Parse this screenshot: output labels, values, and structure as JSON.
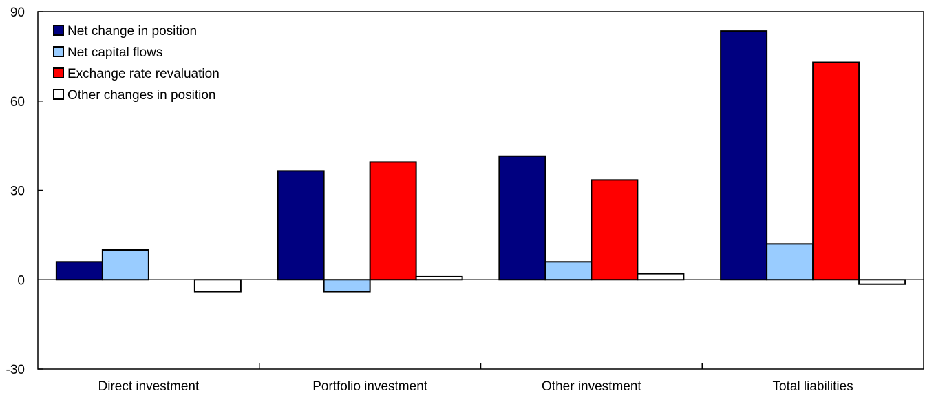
{
  "chart_data": {
    "type": "bar",
    "categories": [
      "Direct investment",
      "Portfolio investment",
      "Other investment",
      "Total liabilities"
    ],
    "series": [
      {
        "name": "Net change in position",
        "values": [
          6,
          36.5,
          41.5,
          83.5
        ],
        "color": "#000080"
      },
      {
        "name": "Net capital flows",
        "values": [
          10,
          -4,
          6,
          12
        ],
        "color": "#99ccff"
      },
      {
        "name": "Exchange rate revaluation",
        "values": [
          0,
          39.5,
          33.5,
          73
        ],
        "color": "#ff0000"
      },
      {
        "name": "Other changes in position",
        "values": [
          -4,
          1,
          2,
          -1.5
        ],
        "color": "#ffffff"
      }
    ],
    "ylim": [
      -30,
      90
    ],
    "yticks": [
      -30,
      0,
      30,
      60,
      90
    ],
    "xlabel": "",
    "ylabel": "",
    "title": "",
    "grid": false,
    "legend_position": "top-left"
  }
}
